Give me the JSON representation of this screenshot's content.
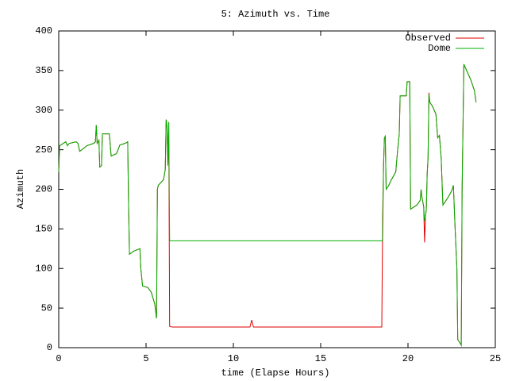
{
  "chart_data": {
    "type": "line",
    "title": "5: Azimuth vs. Time",
    "xlabel": "time (Elapse Hours)",
    "ylabel": "Azimuth",
    "x": [
      0,
      0.05,
      0.4,
      0.5,
      0.6,
      1.0,
      1.1,
      1.2,
      1.5,
      1.6,
      2.0,
      2.1,
      2.15,
      2.2,
      2.3,
      2.35,
      2.45,
      2.5,
      2.9,
      3.0,
      3.3,
      3.4,
      3.5,
      3.8,
      3.95,
      4.0,
      4.05,
      4.3,
      4.65,
      4.7,
      4.8,
      5.1,
      5.3,
      5.5,
      5.6,
      5.65,
      5.7,
      6.0,
      6.1,
      6.15,
      6.2,
      6.25,
      6.3,
      6.35,
      6.5,
      10.95,
      11.05,
      11.15,
      18.5,
      18.55,
      18.6,
      18.65,
      18.7,
      18.75,
      18.9,
      19.0,
      19.3,
      19.4,
      19.5,
      19.55,
      19.9,
      19.95,
      20.1,
      20.15,
      20.5,
      20.7,
      20.75,
      20.8,
      20.9,
      20.95,
      21.0,
      21.05,
      21.1,
      21.15,
      21.2,
      21.25,
      21.4,
      21.6,
      21.7,
      21.8,
      21.9,
      22.0,
      22.3,
      22.5,
      22.6,
      22.7,
      22.8,
      22.85,
      22.95,
      23.05,
      23.1,
      23.2,
      23.4,
      23.6,
      23.8,
      23.9
    ],
    "series": [
      {
        "name": "Observed",
        "color": "#e00000",
        "values": [
          222,
          255,
          260,
          255,
          258,
          260,
          258,
          248,
          253,
          255,
          258,
          260,
          281,
          258,
          262,
          228,
          230,
          270,
          270,
          242,
          245,
          250,
          256,
          258,
          260,
          180,
          118,
          122,
          125,
          100,
          78,
          76,
          70,
          55,
          37,
          200,
          205,
          212,
          225,
          288,
          280,
          230,
          285,
          27,
          26,
          26,
          35,
          26,
          26,
          167,
          230,
          265,
          267,
          200,
          205,
          210,
          222,
          248,
          270,
          318,
          318,
          336,
          336,
          175,
          180,
          186,
          200,
          190,
          178,
          133,
          165,
          175,
          220,
          240,
          322,
          310,
          305,
          295,
          265,
          268,
          240,
          180,
          190,
          198,
          205,
          150,
          100,
          10,
          7,
          3,
          200,
          358,
          348,
          338,
          325,
          310
        ]
      },
      {
        "name": "Dome",
        "color": "#00b000",
        "values": [
          222,
          255,
          260,
          255,
          258,
          260,
          258,
          248,
          253,
          255,
          258,
          260,
          281,
          258,
          262,
          228,
          230,
          270,
          270,
          242,
          245,
          250,
          256,
          258,
          260,
          180,
          118,
          122,
          125,
          100,
          78,
          76,
          70,
          55,
          37,
          200,
          205,
          212,
          225,
          288,
          280,
          230,
          285,
          135,
          135,
          135,
          135,
          135,
          135,
          135,
          230,
          265,
          267,
          200,
          205,
          210,
          222,
          248,
          270,
          318,
          318,
          336,
          336,
          175,
          180,
          186,
          200,
          190,
          178,
          160,
          165,
          175,
          220,
          240,
          320,
          310,
          305,
          295,
          265,
          268,
          240,
          180,
          190,
          198,
          205,
          150,
          100,
          10,
          7,
          3,
          200,
          358,
          348,
          338,
          325,
          310
        ]
      }
    ],
    "xlim": [
      0,
      25
    ],
    "xticks": [
      0,
      5,
      10,
      15,
      20,
      25
    ],
    "ylim": [
      0,
      400
    ],
    "yticks": [
      0,
      50,
      100,
      150,
      200,
      250,
      300,
      350,
      400
    ],
    "legend": "top-right"
  }
}
